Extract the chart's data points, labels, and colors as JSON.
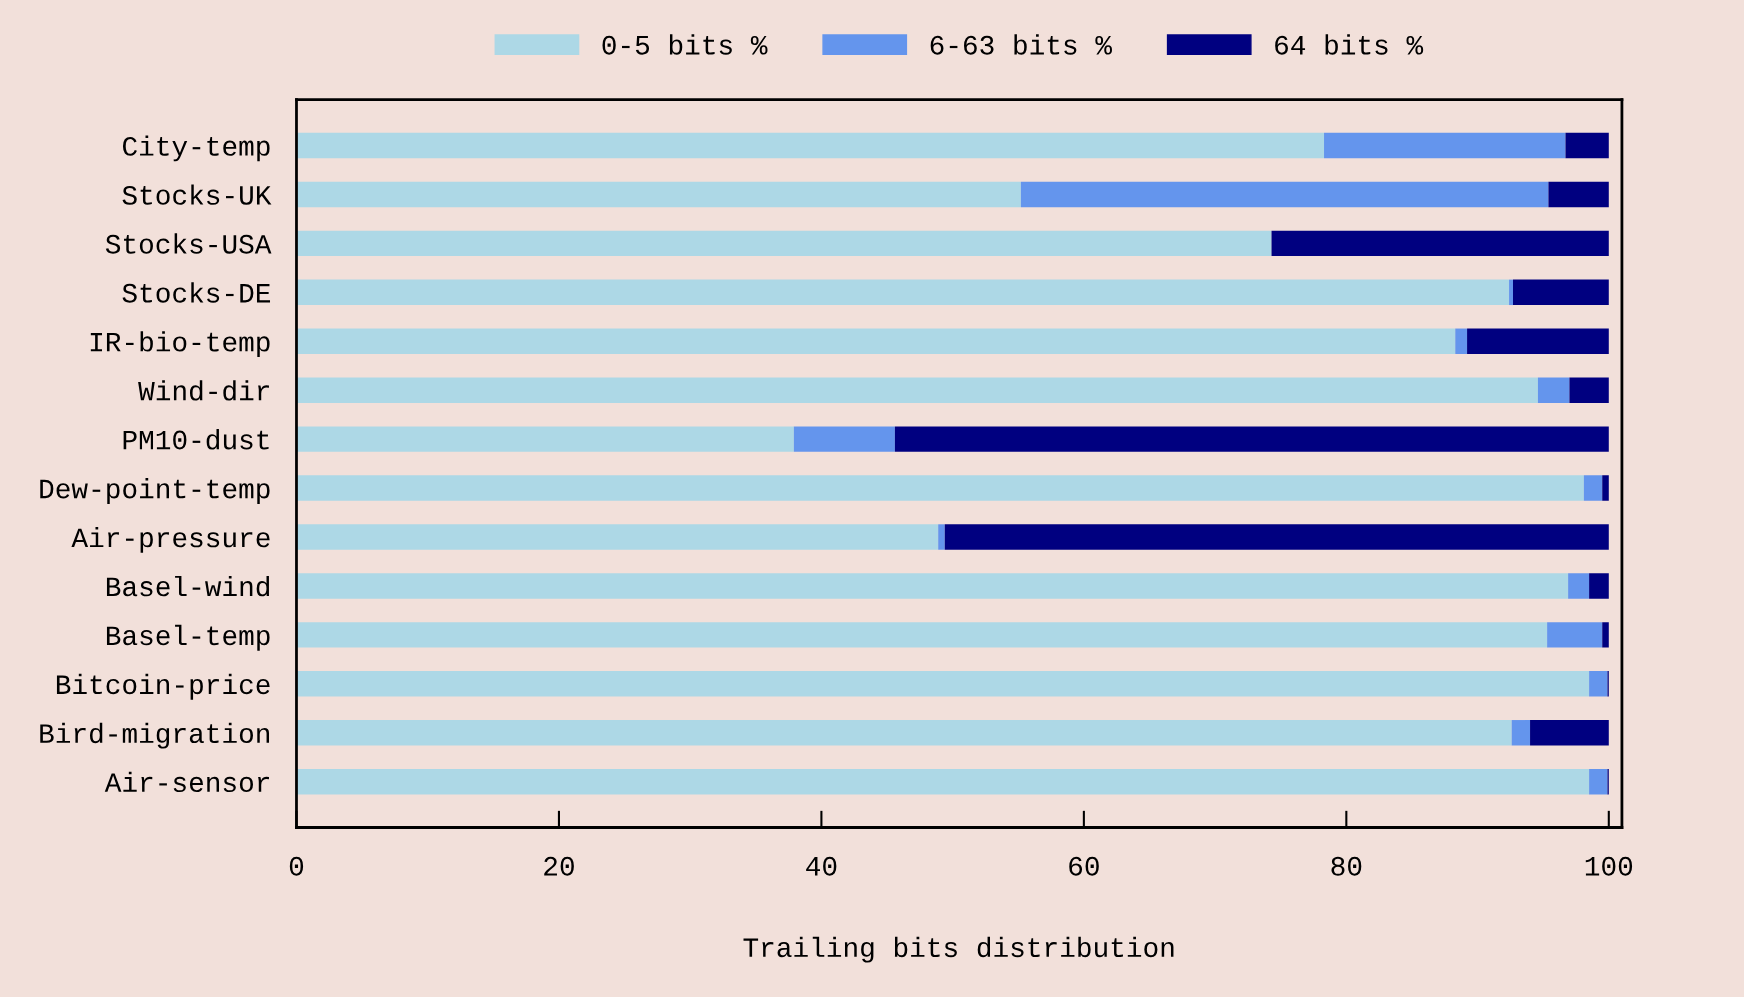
{
  "chart_data": {
    "type": "bar",
    "orientation": "horizontal",
    "stacked": true,
    "xlabel": "Trailing bits distribution",
    "categories": [
      "City-temp",
      "Stocks-UK",
      "Stocks-USA",
      "Stocks-DE",
      "IR-bio-temp",
      "Wind-dir",
      "PM10-dust",
      "Dew-point-temp",
      "Air-pressure",
      "Basel-wind",
      "Basel-temp",
      "Bitcoin-price",
      "Bird-migration",
      "Air-sensor"
    ],
    "series": [
      {
        "name": "0-5 bits %",
        "color": "#add8e6",
        "values": [
          78.3,
          55.2,
          74.3,
          92.4,
          88.3,
          94.6,
          37.9,
          98.1,
          48.9,
          96.9,
          95.3,
          98.5,
          92.6,
          98.5
        ]
      },
      {
        "name": "6-63 bits %",
        "color": "#6495ed",
        "values": [
          18.4,
          40.2,
          0,
          0.3,
          0.9,
          2.4,
          7.7,
          1.4,
          0.5,
          1.6,
          4.2,
          1.4,
          1.4,
          1.4
        ]
      },
      {
        "name": "64 bits %",
        "color": "#000080",
        "values": [
          3.3,
          4.6,
          25.7,
          7.3,
          10.8,
          3.0,
          54.4,
          0.5,
          50.6,
          1.5,
          0.5,
          0.1,
          6.0,
          0.1
        ]
      }
    ],
    "xlim": [
      0,
      101
    ],
    "xticks": [
      0,
      20,
      40,
      60,
      80,
      100
    ],
    "grid": false,
    "legend": "top"
  }
}
